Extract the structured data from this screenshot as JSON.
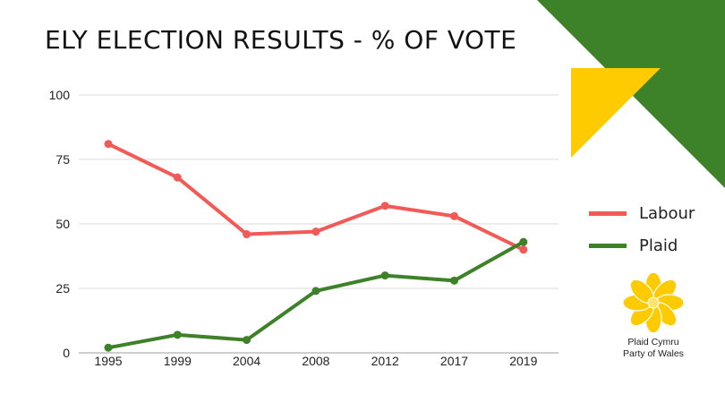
{
  "title": "ELY ELECTION RESULTS - % OF VOTE",
  "colors": {
    "green": "#3d8128",
    "yellow": "#fdcb00",
    "labour": "#f25a57",
    "plaid": "#3d8128"
  },
  "logo": {
    "line1": "Plaid Cymru",
    "line2": "Party of Wales"
  },
  "chart_data": {
    "type": "line",
    "title": "ELY ELECTION RESULTS - % OF VOTE",
    "xlabel": "",
    "ylabel": "",
    "x": [
      "1995",
      "1999",
      "2004",
      "2008",
      "2012",
      "2017",
      "2019"
    ],
    "ylim": [
      0,
      100
    ],
    "yticks": [
      "0",
      "25",
      "50",
      "75",
      "100"
    ],
    "grid": true,
    "legend": "right",
    "series": [
      {
        "name": "Labour",
        "color": "#f25a57",
        "values": [
          81,
          68,
          46,
          47,
          57,
          53,
          40
        ]
      },
      {
        "name": "Plaid",
        "color": "#3d8128",
        "values": [
          2,
          7,
          5,
          24,
          30,
          28,
          43
        ]
      }
    ]
  }
}
